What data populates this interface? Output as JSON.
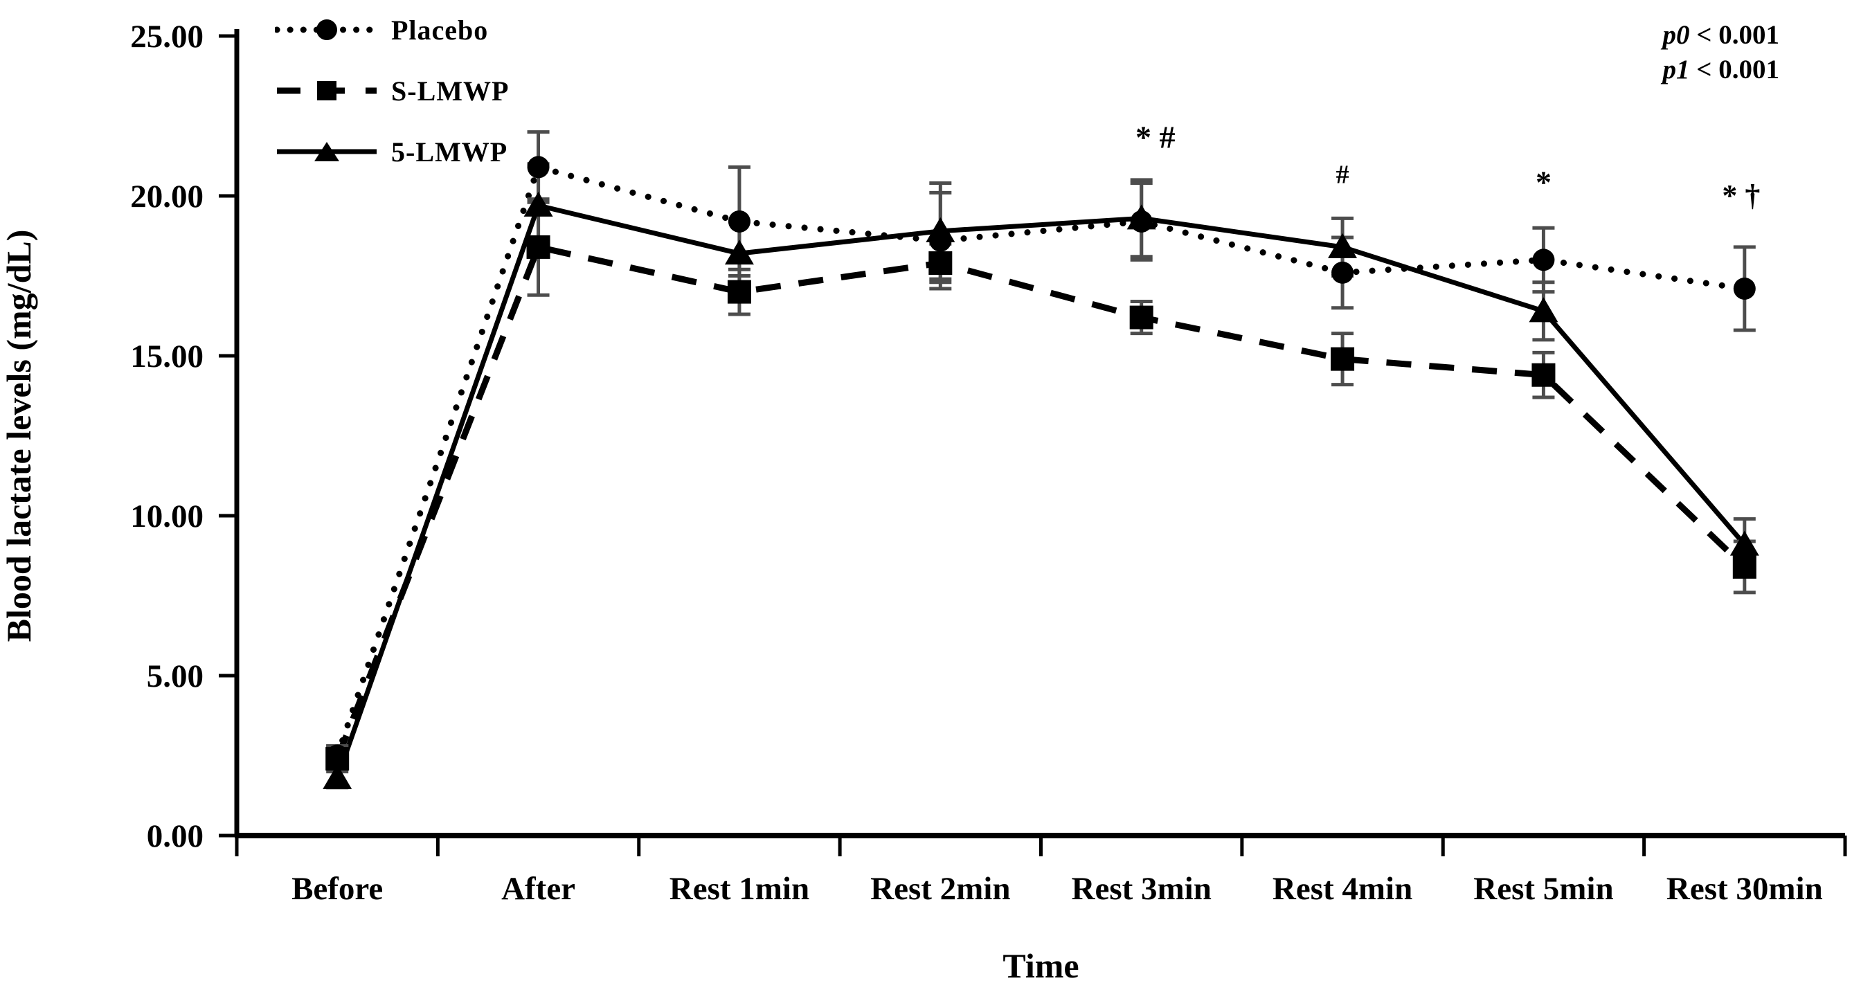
{
  "chart_data": {
    "type": "line",
    "title": "",
    "xlabel": "Time",
    "ylabel": "Blood lactate levels (mg/dL)",
    "ylim": [
      0,
      25
    ],
    "ytick_step": 5,
    "ytick_labels": [
      "0.00",
      "5.00",
      "10.00",
      "15.00",
      "20.00",
      "25.00"
    ],
    "categories": [
      "Before",
      "After",
      "Rest 1min",
      "Rest 2min",
      "Rest 3min",
      "Rest 4min",
      "Rest 5min",
      "Rest 30min"
    ],
    "series": [
      {
        "name": "Placebo",
        "marker": "circle",
        "line": "dotted",
        "values": [
          2.5,
          20.9,
          19.2,
          18.6,
          19.2,
          17.6,
          18.0,
          17.1
        ],
        "errors": [
          0.3,
          1.1,
          1.7,
          1.5,
          1.2,
          1.1,
          1.0,
          1.3
        ]
      },
      {
        "name": "S-LMWP",
        "marker": "square",
        "line": "dashed",
        "values": [
          2.4,
          18.4,
          17.0,
          17.9,
          16.2,
          14.9,
          14.4,
          8.4
        ],
        "errors": [
          0.4,
          1.5,
          0.7,
          0.6,
          0.5,
          0.8,
          0.7,
          0.8
        ]
      },
      {
        "name": "5-LMWP",
        "marker": "triangle",
        "line": "solid",
        "values": [
          1.8,
          19.7,
          18.2,
          18.9,
          19.3,
          18.4,
          16.4,
          9.1
        ],
        "errors": [
          0.3,
          1.3,
          1.0,
          1.5,
          1.2,
          0.9,
          0.9,
          0.8
        ]
      }
    ],
    "annotations": [
      {
        "text": "* #",
        "category_index": 4,
        "y": 21.5,
        "dx": 20,
        "size": 46
      },
      {
        "text": "#",
        "category_index": 5,
        "y": 20.4,
        "dx": 0,
        "size": 38
      },
      {
        "text": "*",
        "category_index": 6,
        "y": 20.1,
        "dx": 0,
        "size": 46
      },
      {
        "text": "* †",
        "category_index": 7,
        "y": 19.7,
        "dx": -5,
        "size": 44
      }
    ],
    "stat_notes": [
      {
        "sym": "p0",
        "val": "< 0.001"
      },
      {
        "sym": "p1",
        "val": "< 0.001"
      }
    ],
    "legend_position": "top-left",
    "grid": false,
    "colors": {
      "series": "#000000",
      "error_bar": "#4d4d4d",
      "text": "#000000",
      "background": "#ffffff"
    }
  }
}
